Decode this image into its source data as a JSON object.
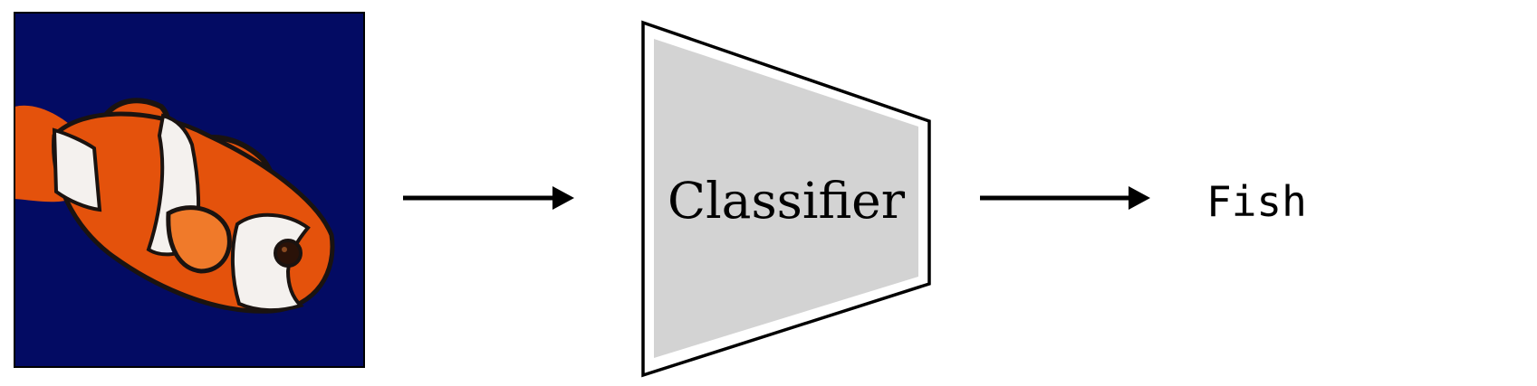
{
  "classifier": {
    "label": "Classifier"
  },
  "output": {
    "label": "Fish"
  },
  "colors": {
    "image_background": "#030b63",
    "fish_orange": "#e4520c",
    "fish_orange_light": "#f07a2a",
    "fish_white": "#f4f1ee",
    "fish_black": "#1a1310",
    "box_fill": "#d3d3d3",
    "stroke": "#000000"
  },
  "icons": {
    "input_image": "clownfish-image",
    "arrow_in": "arrow-right-icon",
    "arrow_out": "arrow-right-icon"
  }
}
